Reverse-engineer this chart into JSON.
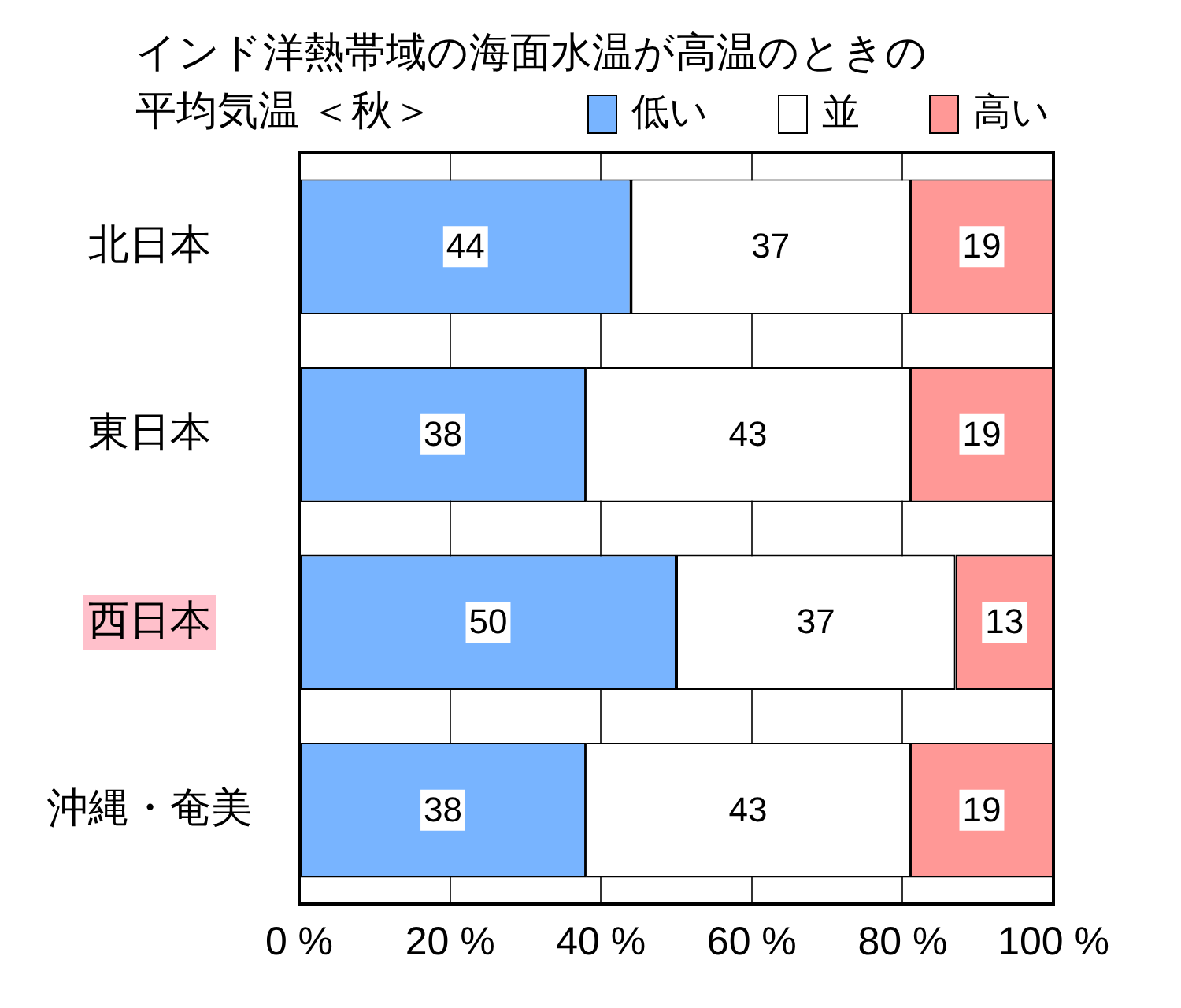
{
  "chart_data": {
    "type": "bar",
    "orientation": "horizontal",
    "stacked": true,
    "title": "インド洋熱帯域の海面水温が高温のときの",
    "subtitle": "平均気温 ＜秋＞",
    "categories": [
      "北日本",
      "東日本",
      "西日本",
      "沖縄・奄美"
    ],
    "series": [
      {
        "name": "低い",
        "color": "#78b4ff",
        "values": [
          44,
          38,
          50,
          38
        ]
      },
      {
        "name": "並",
        "color": "#ffffff",
        "values": [
          37,
          43,
          37,
          43
        ]
      },
      {
        "name": "高い",
        "color": "#ff9896",
        "values": [
          19,
          19,
          13,
          19
        ]
      }
    ],
    "xlim": [
      0,
      100
    ],
    "xticks": [
      {
        "value": 0,
        "label": "0 %"
      },
      {
        "value": 20,
        "label": "20 %"
      },
      {
        "value": 40,
        "label": "40 %"
      },
      {
        "value": 60,
        "label": "60 %"
      },
      {
        "value": 80,
        "label": "80 %"
      },
      {
        "value": 100,
        "label": "100 %"
      }
    ],
    "grid": "x",
    "legend": "top right",
    "data_labels": true
  }
}
